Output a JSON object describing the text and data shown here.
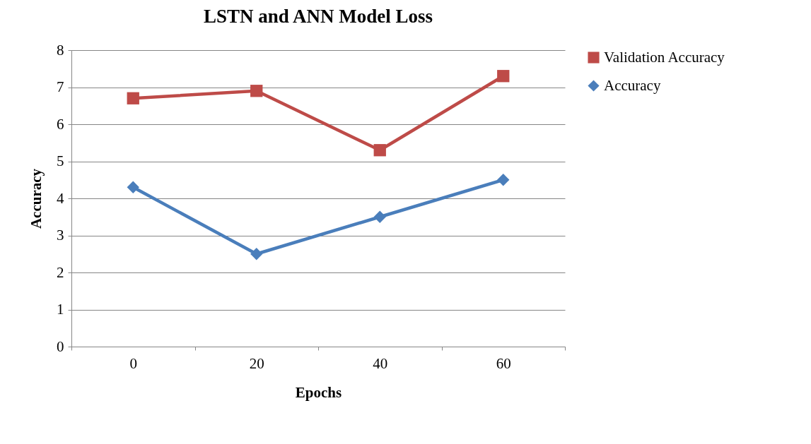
{
  "chart_data": {
    "type": "line",
    "title": "LSTN and ANN Model Loss",
    "xlabel": "Epochs",
    "ylabel": "Accuracy",
    "categories": [
      "0",
      "20",
      "40",
      "60"
    ],
    "series": [
      {
        "name": "Validation Accuracy",
        "color": "#be4b48",
        "marker": "square",
        "values": [
          6.7,
          6.9,
          5.3,
          7.3
        ]
      },
      {
        "name": "Accuracy",
        "color": "#4a7ebb",
        "marker": "diamond",
        "values": [
          4.3,
          2.5,
          3.5,
          4.5
        ]
      }
    ],
    "ylim": [
      0,
      8
    ],
    "yticks": [
      0,
      1,
      2,
      3,
      4,
      5,
      6,
      7,
      8
    ],
    "grid": "y",
    "legend": "right",
    "line_style": "solid"
  }
}
